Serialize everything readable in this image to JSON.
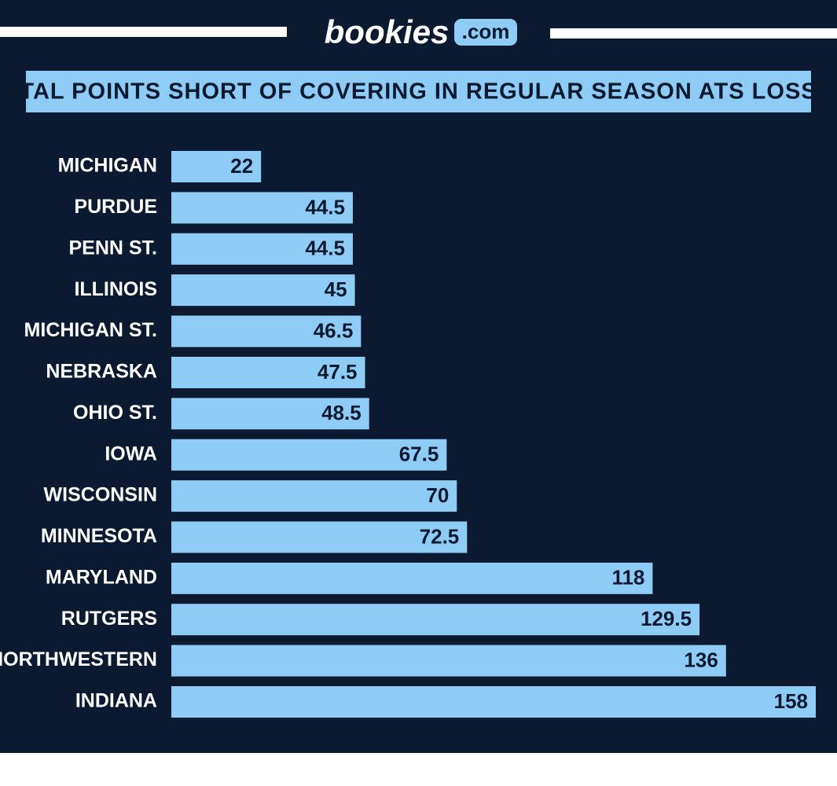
{
  "header": {
    "brand": "bookies",
    "domain": ".com"
  },
  "chart_data": {
    "type": "bar",
    "orientation": "horizontal",
    "title": "TOTAL POINTS SHORT OF COVERING IN REGULAR SEASON ATS LOSSES",
    "categories": [
      "MICHIGAN",
      "PURDUE",
      "PENN ST.",
      "ILLINOIS",
      "MICHIGAN ST.",
      "NEBRASKA",
      "OHIO ST.",
      "IOWA",
      "WISCONSIN",
      "MINNESOTA",
      "MARYLAND",
      "RUTGERS",
      "NORTHWESTERN",
      "INDIANA"
    ],
    "values": [
      22,
      44.5,
      44.5,
      45,
      46.5,
      47.5,
      48.5,
      67.5,
      70,
      72.5,
      118,
      129.5,
      136,
      158
    ],
    "color": "#8ecbf5"
  }
}
